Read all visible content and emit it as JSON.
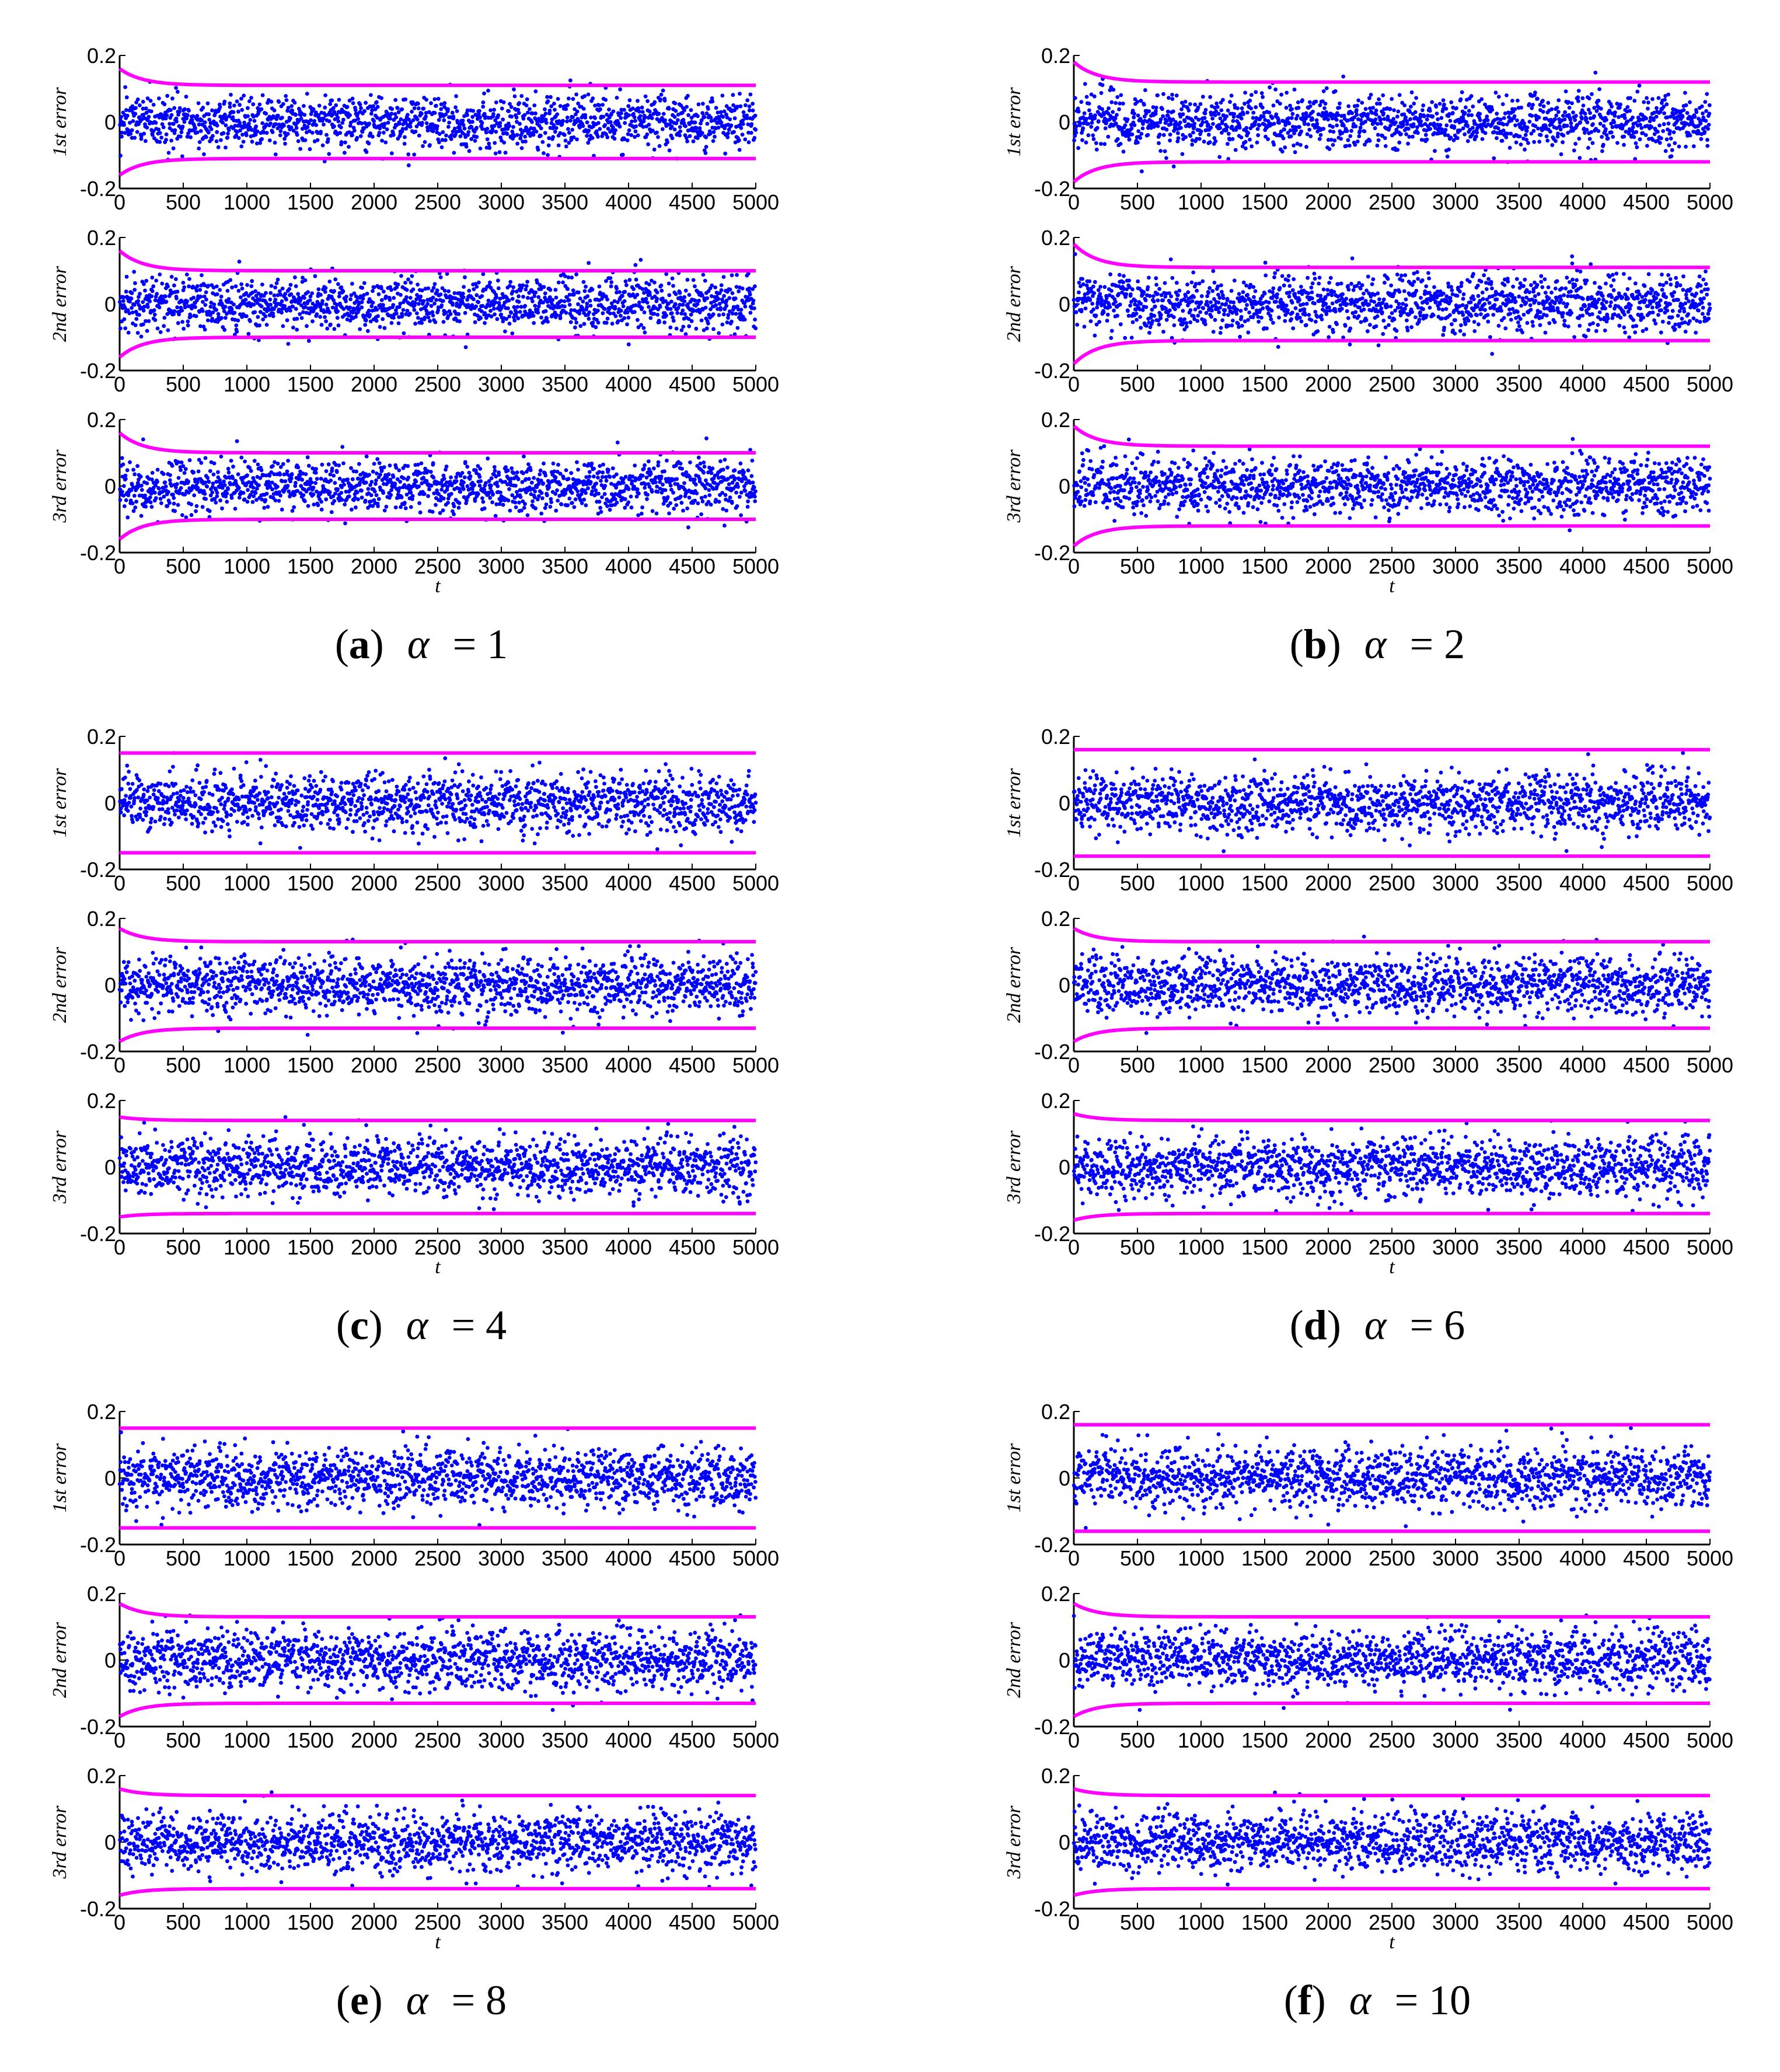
{
  "figure": {
    "panels": [
      {
        "id": "a",
        "letter": "a",
        "alpha": "1"
      },
      {
        "id": "b",
        "letter": "b",
        "alpha": "2"
      },
      {
        "id": "c",
        "letter": "c",
        "alpha": "4"
      },
      {
        "id": "d",
        "letter": "d",
        "alpha": "6"
      },
      {
        "id": "e",
        "letter": "e",
        "alpha": "8"
      },
      {
        "id": "f",
        "letter": "f",
        "alpha": "10"
      }
    ],
    "subplot_ylabels": [
      "1st error",
      "2nd error",
      "3rd error"
    ],
    "xlabel": "t",
    "alpha_symbol": "α",
    "equals": "= ",
    "colors": {
      "points": "#0000ff",
      "bounds": "#ff00ff",
      "axes": "#000000"
    }
  },
  "chart_data": [
    {
      "panel": "a",
      "type": "scatter",
      "xlim": [
        0,
        5000
      ],
      "ylim": [
        -0.2,
        0.2
      ],
      "xticks": [
        "0",
        "500",
        "1000",
        "1500",
        "2000",
        "2500",
        "3000",
        "3500",
        "4000",
        "4500",
        "5000"
      ],
      "yticks": [
        "-0.2",
        "0",
        "0.2"
      ],
      "subplots": [
        {
          "ylabel": "1st error",
          "noise_std": 0.04,
          "bounds": {
            "start": 0.16,
            "end": 0.11
          }
        },
        {
          "ylabel": "2nd error",
          "noise_std": 0.04,
          "bounds": {
            "start": 0.16,
            "end": 0.1
          }
        },
        {
          "ylabel": "3rd error",
          "noise_std": 0.04,
          "bounds": {
            "start": 0.16,
            "end": 0.1
          }
        }
      ]
    },
    {
      "panel": "b",
      "type": "scatter",
      "xlim": [
        0,
        5000
      ],
      "ylim": [
        -0.2,
        0.2
      ],
      "xticks": [
        "0",
        "500",
        "1000",
        "1500",
        "2000",
        "2500",
        "3000",
        "3500",
        "4000",
        "4500",
        "5000"
      ],
      "yticks": [
        "-0.2",
        "0",
        "0.2"
      ],
      "subplots": [
        {
          "ylabel": "1st error",
          "noise_std": 0.042,
          "bounds": {
            "start": 0.18,
            "end": 0.12
          }
        },
        {
          "ylabel": "2nd error",
          "noise_std": 0.042,
          "bounds": {
            "start": 0.18,
            "end": 0.11
          }
        },
        {
          "ylabel": "3rd error",
          "noise_std": 0.042,
          "bounds": {
            "start": 0.18,
            "end": 0.12
          }
        }
      ]
    },
    {
      "panel": "c",
      "type": "scatter",
      "xlim": [
        0,
        5000
      ],
      "ylim": [
        -0.2,
        0.2
      ],
      "xticks": [
        "0",
        "500",
        "1000",
        "1500",
        "2000",
        "2500",
        "3000",
        "3500",
        "4000",
        "4500",
        "5000"
      ],
      "yticks": [
        "-0.2",
        "0",
        "0.2"
      ],
      "subplots": [
        {
          "ylabel": "1st error",
          "noise_std": 0.045,
          "bounds": {
            "start": 0.15,
            "end": 0.15
          }
        },
        {
          "ylabel": "2nd error",
          "noise_std": 0.045,
          "bounds": {
            "start": 0.17,
            "end": 0.13
          }
        },
        {
          "ylabel": "3rd error",
          "noise_std": 0.045,
          "bounds": {
            "start": 0.15,
            "end": 0.14
          }
        }
      ]
    },
    {
      "panel": "d",
      "type": "scatter",
      "xlim": [
        0,
        5000
      ],
      "ylim": [
        -0.2,
        0.2
      ],
      "xticks": [
        "0",
        "500",
        "1000",
        "1500",
        "2000",
        "2500",
        "3000",
        "3500",
        "4000",
        "4500",
        "5000"
      ],
      "yticks": [
        "-0.2",
        "0",
        "0.2"
      ],
      "subplots": [
        {
          "ylabel": "1st error",
          "noise_std": 0.045,
          "bounds": {
            "start": 0.16,
            "end": 0.16
          }
        },
        {
          "ylabel": "2nd error",
          "noise_std": 0.045,
          "bounds": {
            "start": 0.17,
            "end": 0.13
          }
        },
        {
          "ylabel": "3rd error",
          "noise_std": 0.045,
          "bounds": {
            "start": 0.16,
            "end": 0.14
          }
        }
      ]
    },
    {
      "panel": "e",
      "type": "scatter",
      "xlim": [
        0,
        5000
      ],
      "ylim": [
        -0.2,
        0.2
      ],
      "xticks": [
        "0",
        "500",
        "1000",
        "1500",
        "2000",
        "2500",
        "3000",
        "3500",
        "4000",
        "4500",
        "5000"
      ],
      "yticks": [
        "-0.2",
        "0",
        "0.2"
      ],
      "subplots": [
        {
          "ylabel": "1st error",
          "noise_std": 0.045,
          "bounds": {
            "start": 0.15,
            "end": 0.15
          }
        },
        {
          "ylabel": "2nd error",
          "noise_std": 0.045,
          "bounds": {
            "start": 0.17,
            "end": 0.13
          }
        },
        {
          "ylabel": "3rd error",
          "noise_std": 0.045,
          "bounds": {
            "start": 0.16,
            "end": 0.14
          }
        }
      ]
    },
    {
      "panel": "f",
      "type": "scatter",
      "xlim": [
        0,
        5000
      ],
      "ylim": [
        -0.2,
        0.2
      ],
      "xticks": [
        "0",
        "500",
        "1000",
        "1500",
        "2000",
        "2500",
        "3000",
        "3500",
        "4000",
        "4500",
        "5000"
      ],
      "yticks": [
        "-0.2",
        "0",
        "0.2"
      ],
      "subplots": [
        {
          "ylabel": "1st error",
          "noise_std": 0.045,
          "bounds": {
            "start": 0.16,
            "end": 0.16
          }
        },
        {
          "ylabel": "2nd error",
          "noise_std": 0.045,
          "bounds": {
            "start": 0.17,
            "end": 0.13
          }
        },
        {
          "ylabel": "3rd error",
          "noise_std": 0.045,
          "bounds": {
            "start": 0.16,
            "end": 0.14
          }
        }
      ]
    }
  ]
}
